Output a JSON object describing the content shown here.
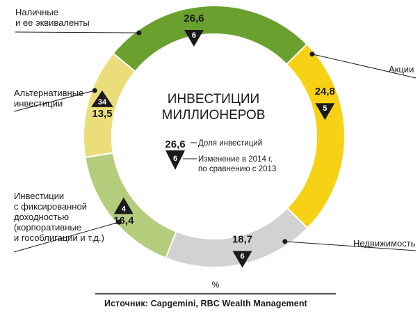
{
  "chart_data": {
    "type": "pie",
    "title_lines": [
      "ИНВЕСТИЦИИ",
      "МИЛЛИОНЕРОВ"
    ],
    "unit": "%",
    "source": "Источник: Capgemini, RBC Wealth Management",
    "legend": {
      "value_example": "26,6",
      "value_label": "Доля инвестиций",
      "change_example": "6",
      "change_label_lines": [
        "Изменение в 2014 г.",
        "по сравнению с 2013"
      ]
    },
    "slices": [
      {
        "label": "Наличные\nи ее эквиваленты",
        "value": 26.6,
        "value_text": "26,6",
        "change": "6",
        "direction": "down",
        "color": "#6aa02e"
      },
      {
        "label": "Акции",
        "value": 24.8,
        "value_text": "24,8",
        "change": "5",
        "direction": "down",
        "color": "#f7d214"
      },
      {
        "label": "Недвижимость",
        "value": 18.7,
        "value_text": "18,7",
        "change": "6",
        "direction": "down",
        "color": "#d2d2d2"
      },
      {
        "label": "Инвестиции\nс фиксированной\nдоходностью\n(корпоративные\nи гособлигации и т.д.)",
        "value": 16.4,
        "value_text": "16,4",
        "change": "4",
        "direction": "up",
        "color": "#b3cd7c"
      },
      {
        "label": "Альтернативные\nинвестиции",
        "value": 13.5,
        "value_text": "13,5",
        "change": "34",
        "direction": "up",
        "color": "#ebde7a"
      }
    ]
  }
}
